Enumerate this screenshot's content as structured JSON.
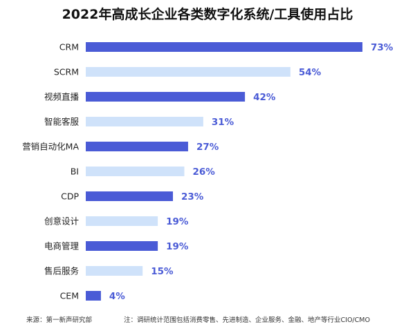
{
  "chart_data": {
    "type": "bar",
    "orientation": "horizontal",
    "title": "2022年高成长企业各类数字化系统/工具使用占比",
    "categories": [
      "CRM",
      "SCRM",
      "视频直播",
      "智能客服",
      "营销自动化MA",
      "BI",
      "CDP",
      "创意设计",
      "电商管理",
      "售后服务",
      "CEM"
    ],
    "values": [
      73,
      54,
      42,
      31,
      27,
      26,
      23,
      19,
      19,
      15,
      4
    ],
    "value_labels": [
      "73%",
      "54%",
      "42%",
      "31%",
      "27%",
      "26%",
      "23%",
      "19%",
      "19%",
      "15%",
      "4%"
    ],
    "xlim": [
      0,
      100
    ],
    "grid": false,
    "legend": "none",
    "colors": {
      "dark": "#4a5bd6",
      "light": "#cfe2fa",
      "label": "#4a5bd6",
      "text": "#222222"
    }
  },
  "footer": {
    "source": "来源：第一新声研究部",
    "note": "注：调研统计范围包括消费零售、先进制造、企业服务、金融、地产等行业CIO/CMO"
  }
}
